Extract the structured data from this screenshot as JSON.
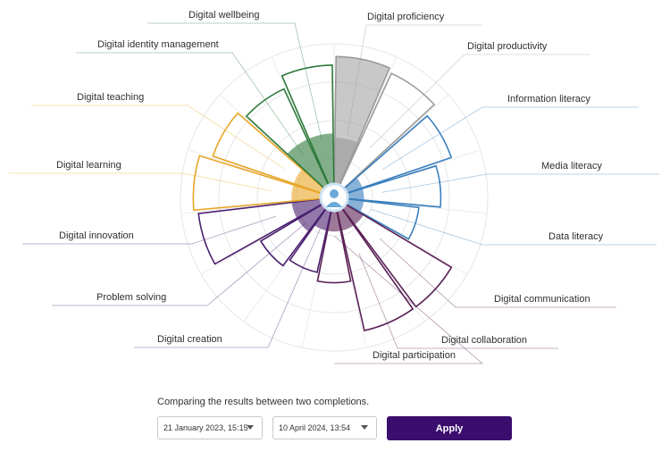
{
  "chart_data": {
    "type": "polar-area",
    "title": "",
    "r_max": 180,
    "categories": [
      {
        "label": "Digital proficiency",
        "value_a": 165,
        "value_b": 70,
        "color": "#9a9a9a"
      },
      {
        "label": "Digital productivity",
        "value_a": 160,
        "value_b": 0,
        "color": "#9a9a9a"
      },
      {
        "label": "Information literacy",
        "value_a": 145,
        "value_b": 35,
        "color": "#3a7fbd"
      },
      {
        "label": "Media literacy",
        "value_a": 125,
        "value_b": 35,
        "color": "#3a7fbd"
      },
      {
        "label": "Data literacy",
        "value_a": 100,
        "value_b": 35,
        "color": "#3a7fbd"
      },
      {
        "label": "Digital communication",
        "value_a": 160,
        "value_b": 40,
        "color": "#5a2055"
      },
      {
        "label": "Digital collaboration",
        "value_a": 160,
        "value_b": 40,
        "color": "#5a2055"
      },
      {
        "label": "Digital participation",
        "value_a": 100,
        "value_b": 40,
        "color": "#5a2055"
      },
      {
        "label": "Digital creation",
        "value_a": 90,
        "value_b": 40,
        "color": "#4a2070"
      },
      {
        "label": "Problem solving",
        "value_a": 100,
        "value_b": 50,
        "color": "#4a2070"
      },
      {
        "label": "Digital innovation",
        "value_a": 160,
        "value_b": 50,
        "color": "#4a2070"
      },
      {
        "label": "Digital learning",
        "value_a": 165,
        "value_b": 50,
        "color": "#e8a628"
      },
      {
        "label": "Digital teaching",
        "value_a": 150,
        "value_b": 50,
        "color": "#e8a628"
      },
      {
        "label": "Digital identity management",
        "value_a": 140,
        "value_b": 75,
        "color": "#2e7a3c"
      },
      {
        "label": "Digital wellbeing",
        "value_a": 155,
        "value_b": 75,
        "color": "#2e7a3c"
      }
    ]
  },
  "compare_text": "Comparing the results between two completions.",
  "select_a": {
    "value": "21 January 2023, 15:15"
  },
  "select_b": {
    "value": "10 April 2024, 13:54"
  },
  "apply_label": "Apply",
  "icons": {
    "center": "user-avatar-icon",
    "caret": "chevron-down-icon"
  }
}
